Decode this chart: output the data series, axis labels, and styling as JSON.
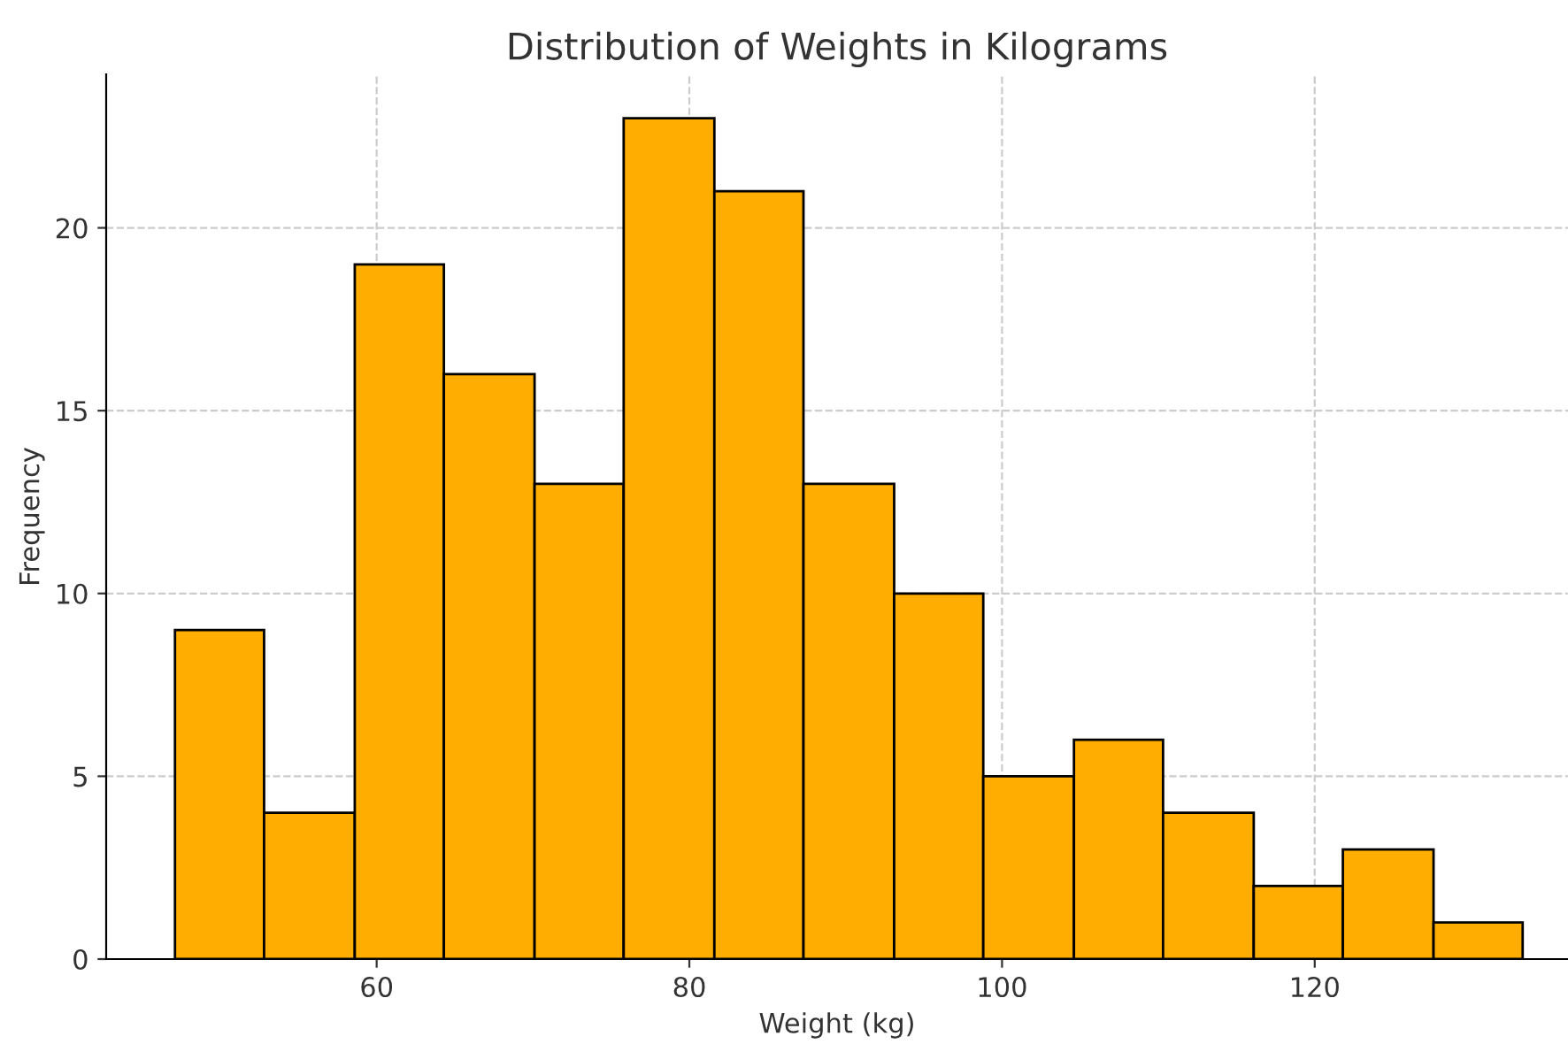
{
  "chart_data": {
    "type": "histogram",
    "title": "Distribution of Weights in Kilograms",
    "xlabel": "Weight (kg)",
    "ylabel": "Frequency",
    "bins": [
      47.1,
      52.8,
      58.6,
      64.3,
      70.1,
      75.8,
      81.6,
      87.3,
      93.1,
      98.8,
      104.6,
      110.3,
      116.1,
      121.8,
      127.6,
      133.3
    ],
    "values": [
      9,
      4,
      19,
      16,
      13,
      23,
      21,
      13,
      10,
      5,
      6,
      4,
      2,
      3,
      1
    ],
    "color": "#ffad00",
    "xlim": [
      42.7,
      136.2
    ],
    "xticks": [
      60,
      80,
      100,
      120
    ],
    "ylim": [
      0,
      24.2
    ],
    "yticks": [
      0,
      5,
      10,
      15,
      20
    ],
    "grid": true
  }
}
